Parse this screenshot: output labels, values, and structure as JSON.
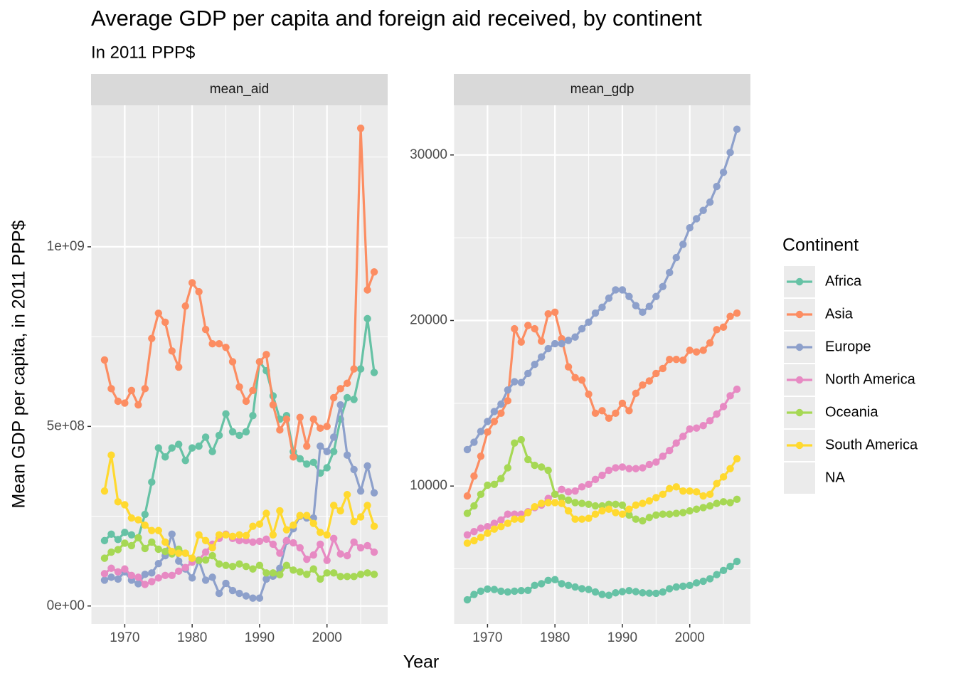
{
  "title": "Average GDP per capita and  foreign aid received, by continent",
  "subtitle": "In 2011 PPP$",
  "x_label": "Year",
  "y_label": "Mean GDP per capita, in 2011 PPP$",
  "legend_title": "Continent",
  "legend_extra": "NA",
  "chart_data": [
    {
      "type": "line",
      "title": "mean_aid",
      "grid": true,
      "minor_grid": true,
      "x": [
        1967,
        1968,
        1969,
        1970,
        1971,
        1972,
        1973,
        1974,
        1975,
        1976,
        1977,
        1978,
        1979,
        1980,
        1981,
        1982,
        1983,
        1984,
        1985,
        1986,
        1987,
        1988,
        1989,
        1990,
        1991,
        1992,
        1993,
        1994,
        1995,
        1996,
        1997,
        1998,
        1999,
        2000,
        2001,
        2002,
        2003,
        2004,
        2005,
        2006,
        2007
      ],
      "xlim": [
        1965,
        2009
      ],
      "xticks": [
        1970,
        1980,
        1990,
        2000
      ],
      "ylim": [
        -50000000.0,
        1394000000.0
      ],
      "yticks": [
        {
          "value": 0,
          "label": "0e+00"
        },
        {
          "value": 500000000,
          "label": "5e+08"
        },
        {
          "value": 1000000000,
          "label": "1e+09"
        }
      ],
      "series": [
        {
          "name": "Africa",
          "color": "#66c2a5",
          "values": [
            182000000.0,
            200000000.0,
            185000000.0,
            205000000.0,
            198000000.0,
            190000000.0,
            255000000.0,
            345000000.0,
            440000000.0,
            415000000.0,
            440000000.0,
            450000000.0,
            405000000.0,
            440000000.0,
            445000000.0,
            470000000.0,
            430000000.0,
            475000000.0,
            535000000.0,
            485000000.0,
            475000000.0,
            485000000.0,
            530000000.0,
            680000000.0,
            655000000.0,
            585000000.0,
            520000000.0,
            530000000.0,
            430000000.0,
            410000000.0,
            395000000.0,
            400000000.0,
            370000000.0,
            385000000.0,
            430000000.0,
            520000000.0,
            580000000.0,
            575000000.0,
            660000000.0,
            800000000.0,
            650000000.0
          ]
        },
        {
          "name": "Asia",
          "color": "#fc8d62",
          "values": [
            685000000.0,
            605000000.0,
            570000000.0,
            565000000.0,
            600000000.0,
            560000000.0,
            605000000.0,
            745000000.0,
            815000000.0,
            790000000.0,
            710000000.0,
            665000000.0,
            835000000.0,
            900000000.0,
            875000000.0,
            770000000.0,
            730000000.0,
            730000000.0,
            720000000.0,
            680000000.0,
            610000000.0,
            570000000.0,
            600000000.0,
            680000000.0,
            700000000.0,
            560000000.0,
            490000000.0,
            520000000.0,
            415000000.0,
            525000000.0,
            445000000.0,
            520000000.0,
            495000000.0,
            500000000.0,
            580000000.0,
            605000000.0,
            620000000.0,
            660000000.0,
            1330000000.0,
            880000000.0,
            930000000.0
          ]
        },
        {
          "name": "Europe",
          "color": "#8da0cb",
          "values": [
            72000000.0,
            80000000.0,
            75000000.0,
            95000000.0,
            72000000.0,
            62000000.0,
            88000000.0,
            92000000.0,
            118000000.0,
            140000000.0,
            200000000.0,
            125000000.0,
            103000000.0,
            78000000.0,
            127000000.0,
            72000000.0,
            80000000.0,
            35000000.0,
            63000000.0,
            43000000.0,
            35000000.0,
            28000000.0,
            22000000.0,
            22000000.0,
            75000000.0,
            83000000.0,
            105000000.0,
            180000000.0,
            215000000.0,
            250000000.0,
            245000000.0,
            245000000.0,
            445000000.0,
            430000000.0,
            470000000.0,
            560000000.0,
            420000000.0,
            380000000.0,
            320000000.0,
            390000000.0,
            315000000.0
          ]
        },
        {
          "name": "North America",
          "color": "#e78ac3",
          "values": [
            90000000.0,
            105000000.0,
            95000000.0,
            103000000.0,
            85000000.0,
            80000000.0,
            60000000.0,
            68000000.0,
            78000000.0,
            85000000.0,
            85000000.0,
            97000000.0,
            107000000.0,
            122000000.0,
            128000000.0,
            150000000.0,
            172000000.0,
            188000000.0,
            200000000.0,
            188000000.0,
            182000000.0,
            182000000.0,
            178000000.0,
            180000000.0,
            186000000.0,
            172000000.0,
            147000000.0,
            182000000.0,
            176000000.0,
            162000000.0,
            130000000.0,
            142000000.0,
            172000000.0,
            127000000.0,
            188000000.0,
            145000000.0,
            140000000.0,
            178000000.0,
            162000000.0,
            168000000.0,
            150000000.0
          ]
        },
        {
          "name": "Oceania",
          "color": "#a6d854",
          "values": [
            133000000.0,
            150000000.0,
            157000000.0,
            175000000.0,
            168000000.0,
            190000000.0,
            160000000.0,
            178000000.0,
            158000000.0,
            152000000.0,
            145000000.0,
            158000000.0,
            147000000.0,
            133000000.0,
            127000000.0,
            128000000.0,
            140000000.0,
            117000000.0,
            113000000.0,
            110000000.0,
            117000000.0,
            110000000.0,
            103000000.0,
            113000000.0,
            92000000.0,
            92000000.0,
            87000000.0,
            113000000.0,
            100000000.0,
            95000000.0,
            88000000.0,
            103000000.0,
            75000000.0,
            92000000.0,
            92000000.0,
            82000000.0,
            82000000.0,
            82000000.0,
            88000000.0,
            92000000.0,
            88000000.0
          ]
        },
        {
          "name": "South America",
          "color": "#ffd92f",
          "values": [
            320000000.0,
            420000000.0,
            290000000.0,
            282000000.0,
            245000000.0,
            240000000.0,
            225000000.0,
            210000000.0,
            210000000.0,
            178000000.0,
            152000000.0,
            147000000.0,
            147000000.0,
            133000000.0,
            198000000.0,
            182000000.0,
            162000000.0,
            198000000.0,
            198000000.0,
            194000000.0,
            198000000.0,
            196000000.0,
            222000000.0,
            228000000.0,
            258000000.0,
            198000000.0,
            265000000.0,
            212000000.0,
            225000000.0,
            252000000.0,
            252000000.0,
            230000000.0,
            205000000.0,
            198000000.0,
            280000000.0,
            265000000.0,
            310000000.0,
            235000000.0,
            248000000.0,
            280000000.0,
            222000000.0
          ]
        }
      ]
    },
    {
      "type": "line",
      "title": "mean_gdp",
      "grid": true,
      "minor_grid": true,
      "x": [
        1967,
        1968,
        1969,
        1970,
        1971,
        1972,
        1973,
        1974,
        1975,
        1976,
        1977,
        1978,
        1979,
        1980,
        1981,
        1982,
        1983,
        1984,
        1985,
        1986,
        1987,
        1988,
        1989,
        1990,
        1991,
        1992,
        1993,
        1994,
        1995,
        1996,
        1997,
        1998,
        1999,
        2000,
        2001,
        2002,
        2003,
        2004,
        2005,
        2006,
        2007
      ],
      "xlim": [
        1965,
        2009
      ],
      "xticks": [
        1970,
        1980,
        1990,
        2000
      ],
      "ylim": [
        1670,
        33000
      ],
      "yticks": [
        10000,
        20000,
        30000
      ],
      "series": [
        {
          "name": "Africa",
          "color": "#66c2a5",
          "values": [
            3130,
            3450,
            3650,
            3780,
            3750,
            3650,
            3600,
            3650,
            3680,
            3700,
            4000,
            4100,
            4300,
            4350,
            4100,
            4000,
            3900,
            3800,
            3750,
            3600,
            3450,
            3400,
            3550,
            3620,
            3680,
            3620,
            3550,
            3530,
            3520,
            3600,
            3800,
            3900,
            3950,
            4000,
            4150,
            4250,
            4400,
            4650,
            4900,
            5150,
            5450
          ]
        },
        {
          "name": "Asia",
          "color": "#fc8d62",
          "values": [
            9400,
            10600,
            11800,
            13260,
            13900,
            14400,
            15150,
            19500,
            18700,
            19700,
            19500,
            18750,
            20400,
            20500,
            18900,
            17200,
            16550,
            16400,
            15550,
            14400,
            14550,
            14100,
            14400,
            15000,
            14550,
            15600,
            16100,
            16350,
            16800,
            17100,
            17650,
            17650,
            17600,
            18200,
            18100,
            18200,
            18650,
            19450,
            19600,
            20250,
            20450
          ]
        },
        {
          "name": "Europe",
          "color": "#8da0cb",
          "values": [
            12200,
            12650,
            13300,
            13900,
            14500,
            14950,
            15800,
            16300,
            16250,
            16800,
            17350,
            17800,
            18300,
            18600,
            18600,
            18800,
            19000,
            19500,
            19900,
            20450,
            20800,
            21350,
            21850,
            21850,
            21450,
            20900,
            20500,
            20850,
            21450,
            22050,
            22900,
            23800,
            24600,
            25600,
            26150,
            26650,
            27150,
            28100,
            28950,
            30150,
            31550
          ]
        },
        {
          "name": "North America",
          "color": "#e78ac3",
          "values": [
            7050,
            7250,
            7450,
            7550,
            7750,
            7950,
            8300,
            8300,
            8300,
            8450,
            8700,
            8850,
            9250,
            9500,
            9800,
            9650,
            9700,
            9950,
            10100,
            10400,
            10650,
            10950,
            11100,
            11150,
            11050,
            11050,
            11100,
            11300,
            11450,
            11800,
            12150,
            12600,
            13000,
            13450,
            13500,
            13650,
            13950,
            14350,
            14800,
            15450,
            15850
          ]
        },
        {
          "name": "Oceania",
          "color": "#a6d854",
          "values": [
            8350,
            8800,
            9500,
            10050,
            10100,
            10450,
            11100,
            12600,
            12800,
            11600,
            11250,
            11150,
            10950,
            9500,
            9300,
            9150,
            9000,
            8950,
            8900,
            8800,
            8800,
            8900,
            8900,
            8850,
            8250,
            8000,
            7900,
            8100,
            8250,
            8300,
            8300,
            8350,
            8400,
            8500,
            8600,
            8700,
            8800,
            8950,
            9050,
            9000,
            9200
          ]
        },
        {
          "name": "South America",
          "color": "#ffd92f",
          "values": [
            6550,
            6700,
            6900,
            7150,
            7400,
            7550,
            7750,
            8000,
            8000,
            8400,
            8750,
            8950,
            9000,
            9000,
            8950,
            8500,
            8000,
            8000,
            8050,
            8300,
            8500,
            8600,
            8400,
            8300,
            8600,
            8850,
            8950,
            9100,
            9300,
            9500,
            9850,
            9950,
            9700,
            9700,
            9650,
            9400,
            9500,
            10150,
            10550,
            11050,
            11650
          ]
        }
      ]
    }
  ]
}
